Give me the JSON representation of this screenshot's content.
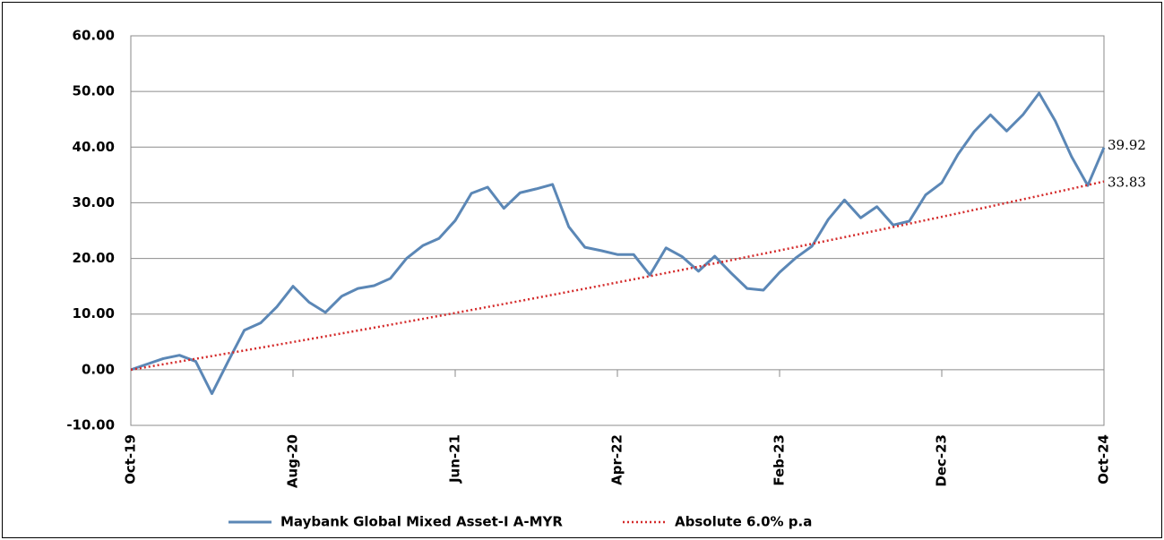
{
  "chart_data": {
    "type": "line",
    "categories": [
      "Oct-19",
      null,
      null,
      null,
      null,
      null,
      null,
      null,
      null,
      null,
      "Aug-20",
      null,
      null,
      null,
      null,
      null,
      null,
      null,
      null,
      null,
      "Jun-21",
      null,
      null,
      null,
      null,
      null,
      null,
      null,
      null,
      null,
      "Apr-22",
      null,
      null,
      null,
      null,
      null,
      null,
      null,
      null,
      null,
      "Feb-23",
      null,
      null,
      null,
      null,
      null,
      null,
      null,
      null,
      null,
      "Dec-23",
      null,
      null,
      null,
      null,
      null,
      null,
      null,
      null,
      null,
      "Oct-24"
    ],
    "series": [
      {
        "name": "Maybank Global Mixed Asset-I A-MYR",
        "color": "#5b87b6",
        "style": "solid",
        "values": [
          0,
          1.0,
          2.0,
          2.6,
          1.5,
          -4.3,
          1.5,
          7.1,
          8.4,
          11.3,
          15.0,
          12.1,
          10.3,
          13.2,
          14.6,
          15.1,
          16.4,
          20.0,
          22.3,
          23.6,
          26.8,
          31.7,
          32.8,
          29.0,
          31.8,
          32.5,
          33.3,
          25.7,
          22.0,
          21.4,
          20.7,
          20.7,
          17.0,
          21.9,
          20.3,
          17.7,
          20.4,
          17.4,
          14.6,
          14.3,
          17.5,
          20.1,
          22.2,
          27.0,
          30.5,
          27.3,
          29.3,
          26.0,
          26.7,
          31.4,
          33.6,
          38.7,
          42.8,
          45.8,
          42.9,
          45.8,
          49.7,
          44.7,
          38.3,
          33.1,
          39.92
        ]
      },
      {
        "name": "Absolute 6.0% p.a",
        "color": "#d42a2a",
        "style": "dotted",
        "values": [
          0,
          0.487,
          0.976,
          1.467,
          1.961,
          2.457,
          2.956,
          3.457,
          3.961,
          4.467,
          4.976,
          5.487,
          6.0,
          6.516,
          7.035,
          7.557,
          8.081,
          8.607,
          9.136,
          9.667,
          10.201,
          10.738,
          11.277,
          11.818,
          12.36,
          12.907,
          13.457,
          14.009,
          14.564,
          15.122,
          15.683,
          16.246,
          16.811,
          17.38,
          17.951,
          18.525,
          19.102,
          19.681,
          20.264,
          20.849,
          21.437,
          22.028,
          22.622,
          23.219,
          23.818,
          24.421,
          25.026,
          25.634,
          26.248,
          26.862,
          27.48,
          28.1,
          28.724,
          29.35,
          29.98,
          30.613,
          31.248,
          31.887,
          32.529,
          33.174,
          33.83
        ]
      }
    ],
    "ylim": [
      -10,
      60
    ],
    "yticks": [
      {
        "value": -10,
        "label": "-10.00"
      },
      {
        "value": 0,
        "label": "0.00"
      },
      {
        "value": 10,
        "label": "10.00"
      },
      {
        "value": 20,
        "label": "20.00"
      },
      {
        "value": 30,
        "label": "30.00"
      },
      {
        "value": 40,
        "label": "40.00"
      },
      {
        "value": 50,
        "label": "50.00"
      },
      {
        "value": 60,
        "label": "60.00"
      }
    ],
    "grid": true,
    "legend": "bottom"
  }
}
